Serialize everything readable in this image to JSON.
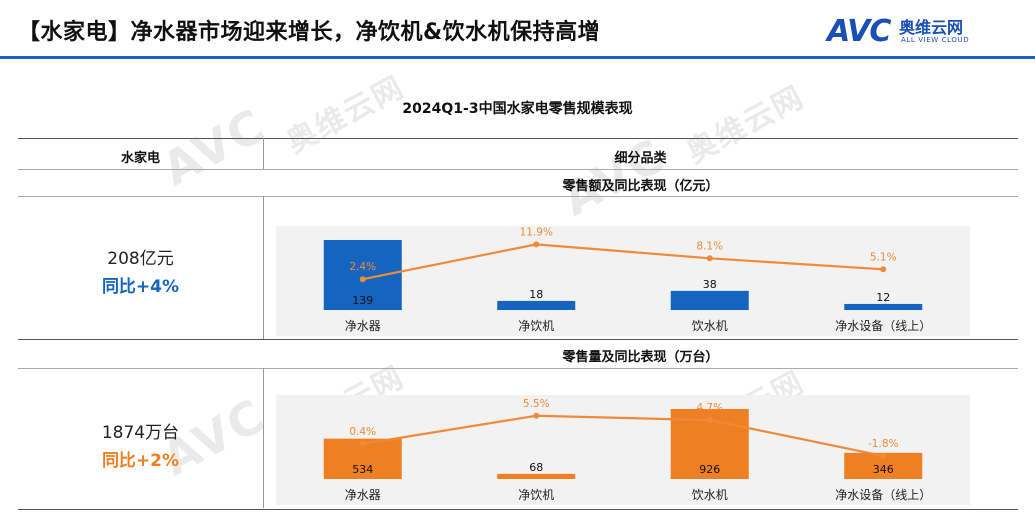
{
  "header": {
    "title": "【水家电】净水器市场迎来增长，净饮机&饮水机保持高增",
    "logo_mark": "AVC",
    "logo_cn": "奥维云网",
    "logo_en": "ALL VIEW CLOUD"
  },
  "watermark": {
    "mark": "AVC",
    "cn": "奥维云网",
    "en": "ALL VIEW CLOUD"
  },
  "table": {
    "title": "2024Q1-3中国水家电零售规模表现",
    "col_left_header": "水家电",
    "col_right_header": "细分品类"
  },
  "colors": {
    "blue": "#1565c0",
    "orange": "#f07f24",
    "line_orange": "#ef8a3a",
    "panel": "#f2f2f2"
  },
  "chart_data": [
    {
      "type": "bar",
      "title": "零售额及同比表现（亿元）",
      "summary_total": "208亿元",
      "summary_yoy": "同比+4%",
      "categories": [
        "净水器",
        "净饮机",
        "饮水机",
        "净水设备（线上）"
      ],
      "series": [
        {
          "type": "bar",
          "values": [
            139,
            18,
            38,
            12
          ],
          "labels": [
            "139",
            "18",
            "38",
            "12"
          ]
        },
        {
          "type": "line",
          "values": [
            2.4,
            11.9,
            8.1,
            5.1
          ],
          "labels": [
            "2.4%",
            "11.9%",
            "8.1%",
            "5.1%"
          ]
        }
      ],
      "ylim_bar": [
        0,
        139
      ],
      "ylim_line": [
        0,
        12
      ],
      "bar_color": "#1565c0"
    },
    {
      "type": "bar",
      "title": "零售量及同比表现（万台）",
      "summary_total": "1874万台",
      "summary_yoy": "同比+2%",
      "categories": [
        "净水器",
        "净饮机",
        "饮水机",
        "净水设备（线上）"
      ],
      "series": [
        {
          "type": "bar",
          "values": [
            534,
            68,
            926,
            346
          ],
          "labels": [
            "534",
            "68",
            "926",
            "346"
          ]
        },
        {
          "type": "line",
          "values": [
            0.4,
            5.5,
            4.7,
            -1.8
          ],
          "labels": [
            "0.4%",
            "5.5%",
            "4.7%",
            "-1.8%"
          ]
        }
      ],
      "ylim_bar": [
        0,
        926
      ],
      "ylim_line": [
        -2,
        6
      ],
      "bar_color": "#f07f24"
    }
  ]
}
